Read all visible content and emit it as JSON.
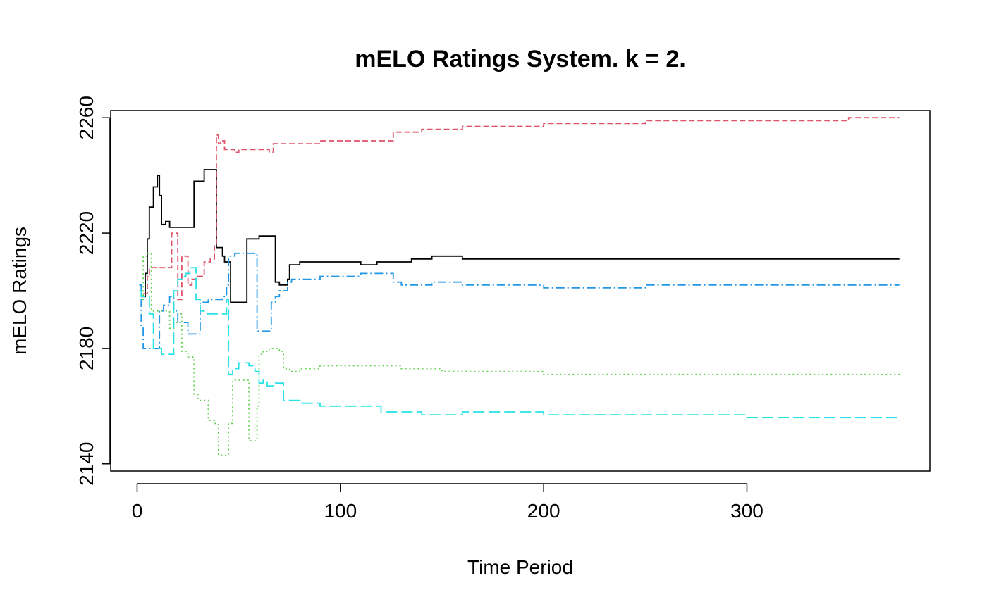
{
  "chart_data": {
    "type": "line",
    "title": "mELO Ratings System. k = 2.",
    "xlabel": "Time Period",
    "ylabel": "mELO Ratings",
    "xlim": [
      -13,
      390
    ],
    "ylim": [
      2137.5,
      2262.5
    ],
    "xticks": [
      0,
      100,
      200,
      300
    ],
    "yticks": [
      2140,
      2180,
      2220,
      2260
    ],
    "grid": false,
    "legend": "none",
    "series": [
      {
        "color": "#000000",
        "dash": "solid",
        "x": [
          2,
          4,
          5,
          6,
          8,
          10,
          11,
          12,
          14,
          16,
          27,
          28,
          31,
          33,
          37,
          39,
          40,
          42,
          43,
          45,
          46,
          53,
          54,
          59,
          60,
          67,
          68,
          70,
          74,
          75,
          78,
          80,
          90,
          100,
          110,
          118,
          125,
          135,
          145,
          160,
          200,
          300,
          375
        ],
        "y": [
          2198,
          2206,
          2218,
          2229,
          2236,
          2240,
          2233,
          2223,
          2224,
          2222,
          2222,
          2238,
          2238,
          2242,
          2242,
          2215,
          2215,
          2212,
          2210,
          2210,
          2196,
          2196,
          2218,
          2218,
          2219,
          2219,
          2203,
          2202,
          2204,
          2209,
          2209,
          2210,
          2210,
          2210,
          2209,
          2210,
          2210,
          2211,
          2212,
          2211,
          2211,
          2211,
          2211
        ]
      },
      {
        "color": "#DF536B",
        "dash": "8 4",
        "x": [
          3,
          5,
          6,
          8,
          12,
          16,
          17,
          19,
          20,
          22,
          25,
          27,
          30,
          33,
          36,
          38,
          39,
          40,
          41,
          43,
          45,
          48,
          50,
          58,
          63,
          65,
          67,
          72,
          90,
          110,
          125,
          126,
          140,
          160,
          200,
          250,
          300,
          350,
          375
        ],
        "y": [
          2199,
          2205,
          2208,
          2208,
          2208,
          2208,
          2220,
          2220,
          2197,
          2212,
          2202,
          2204,
          2205,
          2210,
          2211,
          2216,
          2254,
          2251,
          2252,
          2249,
          2249,
          2248,
          2249,
          2249,
          2249,
          2248,
          2251,
          2251,
          2252,
          2252,
          2252,
          2255,
          2256,
          2257,
          2258,
          2259,
          2259,
          2260,
          2260
        ]
      },
      {
        "color": "#61D04F",
        "dash": "2 4",
        "x": [
          2,
          3,
          5,
          7,
          9,
          12,
          14,
          16,
          18,
          20,
          22,
          25,
          28,
          30,
          35,
          38,
          40,
          43,
          45,
          47,
          50,
          53,
          55,
          58,
          59,
          60,
          62,
          65,
          70,
          72,
          75,
          80,
          90,
          110,
          130,
          150,
          200,
          250,
          300,
          350,
          375
        ],
        "y": [
          2196,
          2212,
          2213,
          2193,
          2193,
          2193,
          2193,
          2187,
          2189,
          2192,
          2179,
          2177,
          2164,
          2162,
          2155,
          2154,
          2143,
          2143,
          2154,
          2169,
          2169,
          2169,
          2148,
          2148,
          2160,
          2178,
          2179,
          2180,
          2179,
          2173,
          2172,
          2173,
          2174,
          2174,
          2173,
          2172,
          2171,
          2171,
          2171,
          2171,
          2170
        ]
      },
      {
        "color": "#2297E6",
        "dash": "12 4 2 4",
        "x": [
          1,
          2,
          3,
          6,
          10,
          11,
          13,
          16,
          18,
          20,
          25,
          28,
          31,
          35,
          40,
          42,
          44,
          45,
          48,
          58,
          59,
          60,
          62,
          65,
          66,
          68,
          70,
          74,
          76,
          80,
          90,
          100,
          110,
          124,
          126,
          130,
          145,
          160,
          200,
          250,
          300,
          350,
          375
        ],
        "y": [
          2202,
          2188,
          2180,
          2180,
          2180,
          2193,
          2195,
          2198,
          2193,
          2189,
          2185,
          2185,
          2196,
          2197,
          2197,
          2198,
          2202,
          2212,
          2213,
          2213,
          2186,
          2186,
          2186,
          2186,
          2196,
          2198,
          2200,
          2203,
          2204,
          2204,
          2205,
          2205,
          2206,
          2206,
          2203,
          2202,
          2203,
          2202,
          2201,
          2202,
          2202,
          2202,
          2202
        ]
      },
      {
        "color": "#28E2E5",
        "dash": "16 6",
        "x": [
          1,
          2,
          4,
          6,
          8,
          10,
          12,
          15,
          18,
          20,
          22,
          24,
          26,
          29,
          31,
          33,
          35,
          38,
          40,
          44,
          45,
          47,
          50,
          55,
          58,
          60,
          62,
          64,
          68,
          72,
          75,
          80,
          90,
          100,
          120,
          140,
          160,
          200,
          250,
          300,
          375
        ],
        "y": [
          2200,
          2198,
          2198,
          2192,
          2180,
          2180,
          2178,
          2178,
          2200,
          2204,
          2205,
          2206,
          2208,
          2197,
          2193,
          2192,
          2192,
          2192,
          2192,
          2197,
          2171,
          2173,
          2175,
          2174,
          2172,
          2168,
          2169,
          2167,
          2168,
          2162,
          2162,
          2161,
          2160,
          2160,
          2158,
          2157,
          2158,
          2157,
          2157,
          2156,
          2155
        ]
      }
    ]
  }
}
